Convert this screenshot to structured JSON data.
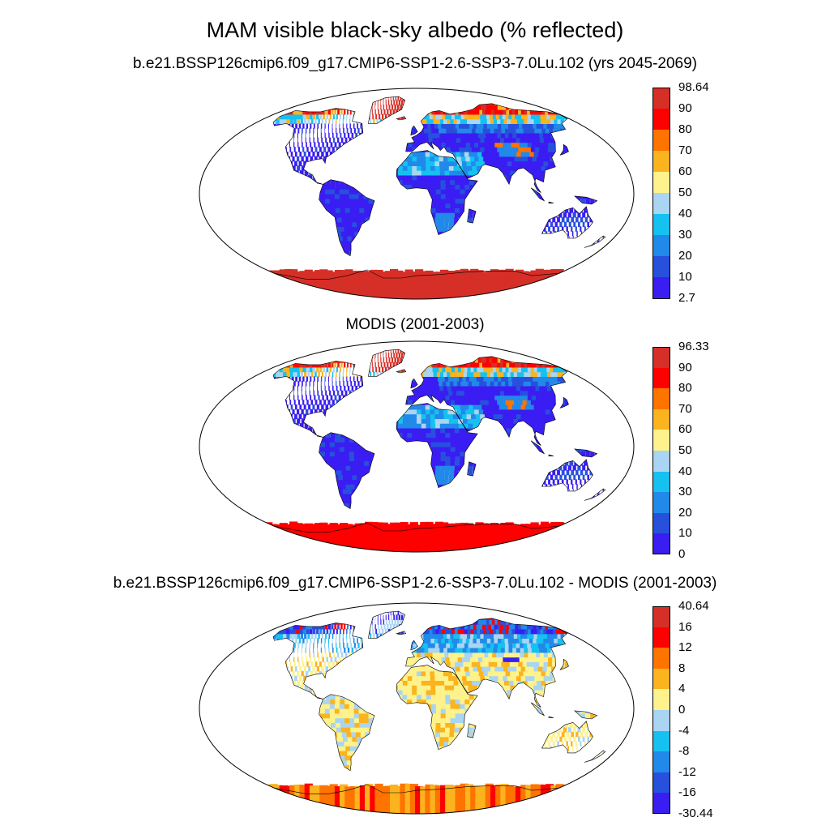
{
  "title": "MAM visible black-sky albedo (% reflected)",
  "panels": [
    {
      "subtitle": "b.e21.BSSP126cmip6.f09_g17.CMIP6-SSP1-2.6-SSP3-7.0Lu.102 (yrs 2045-2069)"
    },
    {
      "subtitle": "MODIS (2001-2003)"
    },
    {
      "subtitle": "b.e21.BSSP126cmip6.f09_g17.CMIP6-SSP1-2.6-SSP3-7.0Lu.102 - MODIS (2001-2003)"
    }
  ],
  "chart_data": [
    {
      "type": "heatmap",
      "title": "b.e21.BSSP126cmip6.f09_g17.CMIP6-SSP1-2.6-SSP3-7.0Lu.102 (yrs 2045-2069)",
      "projection": "Robinson world map with coastlines",
      "colorbar": {
        "labels": [
          "98.64",
          "90",
          "80",
          "70",
          "60",
          "50",
          "40",
          "30",
          "20",
          "10",
          "2.7"
        ],
        "colors": [
          "#d62f27",
          "#ff0000",
          "#ff7300",
          "#fbb31e",
          "#fdf28b",
          "#a9d5f2",
          "#15c1f0",
          "#2189ea",
          "#2751dd",
          "#3a1df2"
        ]
      }
    },
    {
      "type": "heatmap",
      "title": "MODIS (2001-2003)",
      "projection": "Robinson world map with coastlines",
      "colorbar": {
        "labels": [
          "96.33",
          "90",
          "80",
          "70",
          "60",
          "50",
          "40",
          "30",
          "20",
          "10",
          "0"
        ],
        "colors": [
          "#d62f27",
          "#ff0000",
          "#ff7300",
          "#fbb31e",
          "#fdf28b",
          "#a9d5f2",
          "#15c1f0",
          "#2189ea",
          "#2751dd",
          "#3a1df2"
        ]
      }
    },
    {
      "type": "heatmap",
      "title": "b.e21.BSSP126cmip6.f09_g17.CMIP6-SSP1-2.6-SSP3-7.0Lu.102 - MODIS (2001-2003)",
      "projection": "Robinson world map with coastlines",
      "colorbar": {
        "labels": [
          "40.64",
          "16",
          "12",
          "8",
          "4",
          "0",
          "-4",
          "-8",
          "-12",
          "-16",
          "-30.44"
        ],
        "colors": [
          "#d62f27",
          "#ff0000",
          "#ff7300",
          "#fbb31e",
          "#fdf28b",
          "#a9d5f2",
          "#15c1f0",
          "#2189ea",
          "#2751dd",
          "#3a1df2"
        ]
      }
    }
  ]
}
